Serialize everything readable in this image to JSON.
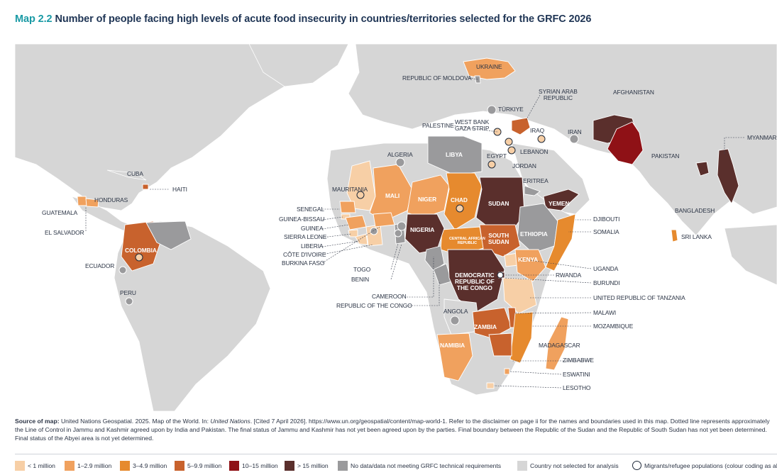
{
  "title": {
    "code": "Map 2.2",
    "text": "Number of people facing high levels of acute food insecurity in countries/territories selected for the GRFC 2026"
  },
  "colors": {
    "ocean": "#ffffff",
    "land": "#d6d6d6",
    "lt1": "#f7cfa6",
    "c1_2_9": "#f0a15e",
    "c3_4_9": "#e68a2e",
    "c5_9_9": "#c8622d",
    "c10_15": "#8f1116",
    "c15plus": "#5a2f2c",
    "nodata": "#9a9a9c",
    "notselected": "#d6d6d6"
  },
  "labels": {
    "ukraine": "UKRAINE",
    "moldova": "REPUBLIC OF MOLDOVA",
    "afghanistan": "AFGHANISTAN",
    "syria": "SYRIAN ARAB\nREPUBLIC",
    "turkiye": "TÜRKIYE",
    "westbank": "WEST BANK\nGAZA STRIP",
    "palestine": "PALESTINE",
    "iraq": "IRAQ",
    "iran": "IRAN",
    "lebanon": "LEBANON",
    "jordan": "JORDAN",
    "myanmar": "MYANMAR",
    "pakistan": "PAKISTAN",
    "algeria": "ALGERIA",
    "libya": "LIBYA",
    "egypt": "EGYPT",
    "cuba": "CUBA",
    "haiti": "HAITI",
    "mauritania": "MAURITANIA",
    "mali": "MALI",
    "niger": "NIGER",
    "chad": "CHAD",
    "sudan": "SUDAN",
    "eritrea": "ERITREA",
    "yemen": "YEMEN",
    "honduras": "HONDURAS",
    "guatemala": "GUATEMALA",
    "elsalvador": "EL SALVADOR",
    "senegal": "SENEGAL",
    "guineabissau": "GUINEA-BISSAU",
    "guinea": "GUINEA",
    "sierraleone": "SIERRA LEONE",
    "liberia": "LIBERIA",
    "cotedivoire": "CÔTE D'IVOIRE",
    "burkinafaso": "BURKINA FASO",
    "nigeria": "NIGERIA",
    "car": "CENTRAL AFRICAN\nREPUBLIC",
    "southsudan": "SOUTH\nSUDAN",
    "ethiopia": "ETHIOPIA",
    "djibouti": "DJIBOUTI",
    "somalia": "SOMALIA",
    "bangladesh": "BANGLADESH",
    "srilanka": "SRI LANKA",
    "colombia": "COLOMBIA",
    "ecuador": "ECUADOR",
    "peru": "PERU",
    "togo": "TOGO",
    "benin": "BENIN",
    "kenya": "KENYA",
    "uganda": "UGANDA",
    "rwanda": "RWANDA",
    "burundi": "BURUNDI",
    "drc": "DEMOCRATIC\nREPUBLIC OF\nTHE CONGO",
    "tanzania": "UNITED REPUBLIC OF TANZANIA",
    "cameroon": "CAMEROON",
    "congo": "REPUBLIC OF THE CONGO",
    "angola": "ANGOLA",
    "malawi": "MALAWI",
    "zambia": "ZAMBIA",
    "mozambique": "MOZAMBIQUE",
    "madagascar": "MADAGASCAR",
    "namibia": "NAMIBIA",
    "zimbabwe": "ZIMBABWE",
    "eswatini": "ESWATINI",
    "lesotho": "LESOTHO"
  },
  "source": {
    "label": "Source of map:",
    "text": " United Nations Geospatial. 2025. Map of the World. In: ",
    "italic": "United Nations",
    "text2": ". [Cited 7 April 2026]. https://www.un.org/geospatial/content/map-world-1. Refer to the disclaimer on page ii for the names and boundaries used in this map. Dotted line represents approximately the Line of Control in Jammu and Kashmir agreed upon by India and Pakistan. The final status of Jammu and Kashmir has not yet been agreed upon by the parties. Final boundary between the Republic of the Sudan and the Republic of South Sudan has not yet been determined. Final status of the Abyei area is not yet determined."
  },
  "legend": [
    {
      "label": "< 1 million",
      "color": "#f7cfa6"
    },
    {
      "label": "1–2.9 million",
      "color": "#f0a15e"
    },
    {
      "label": "3–4.9 million",
      "color": "#e68a2e"
    },
    {
      "label": "5–9.9 million",
      "color": "#c8622d"
    },
    {
      "label": "10–15 million",
      "color": "#8f1116"
    },
    {
      "label": "> 15 million",
      "color": "#5a2f2c"
    },
    {
      "label": "No data/data not meeting GRFC technical requirements",
      "color": "#9a9a9c"
    },
    {
      "label": "Country not selected for analysis",
      "color": "#d6d6d6"
    },
    {
      "label": "Migrants/refugee populations (colour coding as above)",
      "ring": true
    }
  ]
}
